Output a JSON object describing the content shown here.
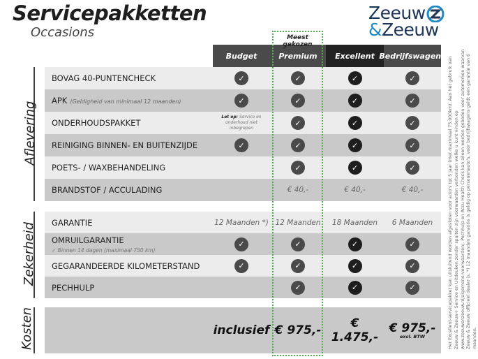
{
  "header": {
    "title": "Servicepakketten",
    "subtitle": "Occasions",
    "logo_line1": "Zeeuw",
    "logo_amp": "&",
    "logo_line2": "Zeeuw",
    "popular_label": "Meest gekozen"
  },
  "columns": [
    "Budget",
    "Premium",
    "Excellent",
    "Bedrijfswagens"
  ],
  "colors": {
    "header_dark": "#4a4a4a",
    "header_darkest": "#222222",
    "row_light": "#ececec",
    "row_dark": "#c9c9c9",
    "popular_border": "#4caf50",
    "logo_blue": "#1e88c7"
  },
  "sections": {
    "aflevering": "Aflevering",
    "zekerheid": "Zekerheid",
    "kosten": "Kosten"
  },
  "aflevering": [
    {
      "label": "BOVAG 40-PUNTENCHECK",
      "note": "",
      "cells": [
        "check",
        "check",
        "check",
        "check"
      ]
    },
    {
      "label": "APK",
      "note": "(Geldigheid van minimaal 12 maanden)",
      "cells": [
        "check",
        "check",
        "check",
        "check"
      ]
    },
    {
      "label": "ONDERHOUDSPAKKET",
      "note": "",
      "budget_note_bold": "Let op:",
      "budget_note": "Service en onderhoud niet inbegrepen",
      "cells": [
        "",
        "check",
        "check",
        "check"
      ]
    },
    {
      "label": "REINIGING BINNEN- EN BUITENZIJDE",
      "note": "",
      "cells": [
        "check",
        "check",
        "check",
        "check"
      ]
    },
    {
      "label": "POETS- / WAXBEHANDELING",
      "note": "",
      "cells": [
        "",
        "check",
        "check",
        "check"
      ]
    },
    {
      "label": "BRANDSTOF / ACCULADING",
      "note": "",
      "cells": [
        "",
        "€ 40,-",
        "€ 40,-",
        "€ 40,-"
      ]
    }
  ],
  "zekerheid": [
    {
      "label": "GARANTIE",
      "cells": [
        "12 Maanden *)",
        "12 Maanden",
        "18 Maanden",
        "6 Maanden"
      ]
    },
    {
      "label": "OMRUILGARANTIE",
      "sub": "✓  Binnen 14 dagen (maximaal 750 km)",
      "cells": [
        "check",
        "check",
        "check",
        "check"
      ]
    },
    {
      "label": "GEGARANDEERDE KILOMETERSTAND",
      "cells": [
        "check",
        "check",
        "check",
        "check"
      ]
    },
    {
      "label": "PECHHULP",
      "cells": [
        "",
        "check",
        "check",
        "check"
      ]
    }
  ],
  "kosten": {
    "cells": [
      "inclusief",
      "€ 975,-",
      "€ 1.475,-",
      "€ 975,-"
    ],
    "bedrijf_note": "excl. BTW"
  },
  "footnote": "Het Excellent-servicepakket kan uitsluitend worden afgesloten voor auto's tot 5 jaar (met maximaal 75.000km). Aan het gebruik van Zeeuw & Zeeuw+ Service en Uitdeuken zonder spuiten zijn voorwaarden verbonden welke u kunt vinden op www.zeeuwenzeeuw.nl/algemene-voorwaarden/. Pechhulp en Accu Health Check kan alleen worden geboden voor automerken waarvan Zeeuw & Zeeuw officieel dealer is. *) 12 maanden garantie is geldig op personenauto's, voor bedrijfswagens geldt een garantie van 6 maanden."
}
